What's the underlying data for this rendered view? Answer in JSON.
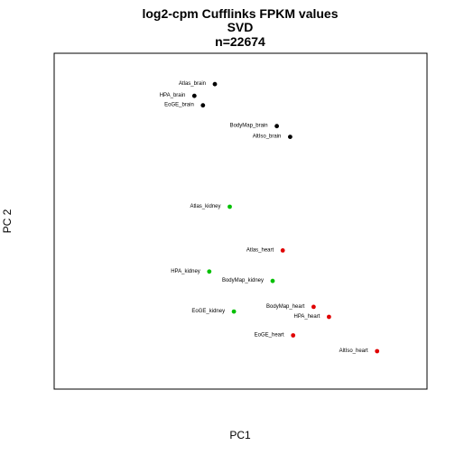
{
  "chart_data": {
    "type": "scatter",
    "title": [
      "log2-cpm Cufflinks FPKM values",
      "SVD",
      "n=22674"
    ],
    "xlabel": "PC1",
    "ylabel": "PC 2",
    "xlim": [
      0,
      100
    ],
    "ylim": [
      0,
      100
    ],
    "axes_ticks": false,
    "grid": false,
    "colors": {
      "brain": "#000000",
      "kidney": "#00c000",
      "heart": "#e00000"
    },
    "points": [
      {
        "label": "Atlas_brain",
        "x": 43.1,
        "y": 90.8,
        "group": "brain"
      },
      {
        "label": "HPA_brain",
        "x": 37.6,
        "y": 87.3,
        "group": "brain"
      },
      {
        "label": "EoGE_brain",
        "x": 39.9,
        "y": 84.5,
        "group": "brain"
      },
      {
        "label": "BodyMap_brain",
        "x": 59.7,
        "y": 78.3,
        "group": "brain"
      },
      {
        "label": "AltIso_brain",
        "x": 63.3,
        "y": 75.1,
        "group": "brain"
      },
      {
        "label": "Atlas_kidney",
        "x": 47.1,
        "y": 54.3,
        "group": "kidney"
      },
      {
        "label": "Atlas_heart",
        "x": 61.3,
        "y": 41.3,
        "group": "heart"
      },
      {
        "label": "HPA_kidney",
        "x": 41.6,
        "y": 35.0,
        "group": "kidney"
      },
      {
        "label": "BodyMap_kidney",
        "x": 58.6,
        "y": 32.2,
        "group": "kidney"
      },
      {
        "label": "BodyMap_heart",
        "x": 69.6,
        "y": 24.5,
        "group": "heart"
      },
      {
        "label": "EoGE_kidney",
        "x": 48.2,
        "y": 23.1,
        "group": "kidney"
      },
      {
        "label": "HPA_heart",
        "x": 73.7,
        "y": 21.5,
        "group": "heart"
      },
      {
        "label": "EoGE_heart",
        "x": 64.1,
        "y": 16.0,
        "group": "heart"
      },
      {
        "label": "AltIso_heart",
        "x": 86.6,
        "y": 11.3,
        "group": "heart"
      }
    ]
  }
}
